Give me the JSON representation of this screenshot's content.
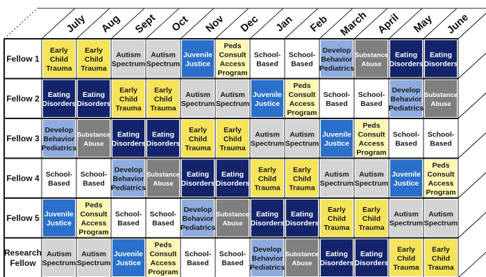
{
  "months": [
    "July",
    "Aug",
    "Sept",
    "Oct",
    "Nov",
    "Dec",
    "Jan",
    "Feb",
    "March",
    "April",
    "May",
    "June"
  ],
  "categories": {
    "ect": {
      "lines": [
        "Early",
        "Child",
        "Trauma"
      ],
      "fill": "#f5e35a",
      "text": "#1a1a1a"
    },
    "aut": {
      "lines": [
        "Autism",
        "Spectrum"
      ],
      "fill": "#d4d4d4",
      "text": "#1a1a1a"
    },
    "jj": {
      "lines": [
        "Juvenile",
        "Justice"
      ],
      "fill": "#2a6fc9",
      "text": "#ffffff"
    },
    "peds": {
      "lines": [
        "Peds",
        "Consult",
        "Access",
        "Program"
      ],
      "fill": "#fff7b3",
      "text": "#1a1a1a"
    },
    "sb": {
      "lines": [
        "School-",
        "Based"
      ],
      "fill": "#ffffff",
      "text": "#1a1a1a"
    },
    "dev": {
      "lines": [
        "Develop",
        "Behavior",
        "Pediatrics"
      ],
      "fill": "#8eacdf",
      "text": "#1a1a1a"
    },
    "sub": {
      "lines": [
        "Substance",
        "Abuse"
      ],
      "fill": "#7f7f7f",
      "text": "#ffffff",
      "small": true
    },
    "eat": {
      "lines": [
        "Eating",
        "Disorders"
      ],
      "fill": "#14246b",
      "text": "#ffffff"
    }
  },
  "rows": [
    {
      "label": [
        "Fellow 1"
      ],
      "cells": [
        "ect",
        "ect",
        "aut",
        "aut",
        "jj",
        "peds",
        "sb",
        "sb",
        "dev",
        "sub",
        "eat",
        "eat"
      ]
    },
    {
      "label": [
        "Fellow 2"
      ],
      "cells": [
        "eat",
        "eat",
        "ect",
        "ect",
        "aut",
        "aut",
        "jj",
        "peds",
        "sb",
        "sb",
        "dev",
        "sub"
      ]
    },
    {
      "label": [
        "Fellow 3"
      ],
      "cells": [
        "dev",
        "sub",
        "eat",
        "eat",
        "ect",
        "ect",
        "aut",
        "aut",
        "jj",
        "peds",
        "sb",
        "sb"
      ]
    },
    {
      "label": [
        "Fellow 4"
      ],
      "cells": [
        "sb",
        "sb",
        "dev",
        "sub",
        "eat",
        "eat",
        "ect",
        "ect",
        "aut",
        "aut",
        "jj",
        "peds"
      ]
    },
    {
      "label": [
        "Fellow 5"
      ],
      "cells": [
        "jj",
        "peds",
        "sb",
        "sb",
        "dev",
        "sub",
        "eat",
        "eat",
        "ect",
        "ect",
        "aut",
        "aut"
      ]
    },
    {
      "label": [
        "Research",
        "Fellow"
      ],
      "cells": [
        "aut",
        "aut",
        "jj",
        "peds",
        "sb",
        "sb",
        "dev",
        "sub",
        "eat",
        "eat",
        "ect",
        "ect"
      ]
    }
  ]
}
